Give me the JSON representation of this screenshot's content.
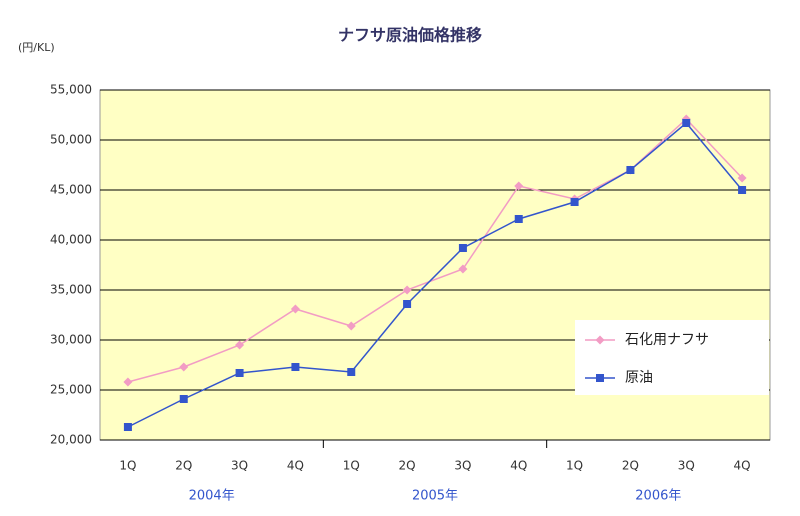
{
  "chart_data": {
    "type": "line",
    "title": "ナフサ原油価格推移",
    "y_unit": "(円/KL)",
    "categories": [
      "1Q",
      "2Q",
      "3Q",
      "4Q",
      "1Q",
      "2Q",
      "3Q",
      "4Q",
      "1Q",
      "2Q",
      "3Q",
      "4Q"
    ],
    "x_groups": [
      "2004年",
      "2005年",
      "2006年"
    ],
    "series": [
      {
        "name": "石化用ナフサ",
        "color": "#f29cc4",
        "marker": "diamond",
        "values": [
          25800,
          27300,
          29500,
          33100,
          31400,
          35000,
          37100,
          45400,
          44100,
          47000,
          52100,
          46200
        ]
      },
      {
        "name": "原油",
        "color": "#3355cc",
        "marker": "square",
        "values": [
          21300,
          24100,
          26700,
          27300,
          26800,
          33600,
          39200,
          42100,
          43800,
          47000,
          51700,
          45000
        ]
      }
    ],
    "ylim": [
      20000,
      55000
    ],
    "yticks": [
      {
        "value": 20000,
        "label": "20,000"
      },
      {
        "value": 25000,
        "label": "25,000"
      },
      {
        "value": 30000,
        "label": "30,000"
      },
      {
        "value": 35000,
        "label": "35,000"
      },
      {
        "value": 40000,
        "label": "40,000"
      },
      {
        "value": 45000,
        "label": "45,000"
      },
      {
        "value": 50000,
        "label": "50,000"
      },
      {
        "value": 55000,
        "label": "55,000"
      }
    ],
    "grid": true,
    "plot_background": "#ffffc4",
    "legend": "right"
  }
}
